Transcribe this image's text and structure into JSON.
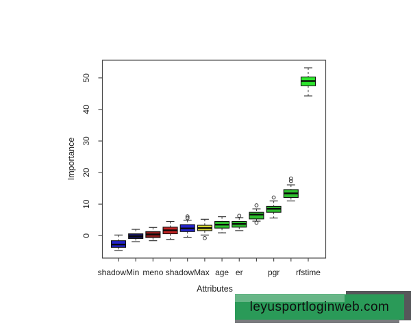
{
  "page": {
    "background_color": "#ffffff"
  },
  "chart_data": {
    "type": "boxplot",
    "title": "",
    "xlabel": "Attributes",
    "ylabel": "Importance",
    "ylim": [
      -7.1,
      55.6
    ],
    "y_ticks": [
      0,
      10,
      20,
      30,
      40,
      50
    ],
    "grid": false,
    "legend": null,
    "axis_color": "#4a4a4a",
    "text_color": "#1e1e1e",
    "whisker_color": "#333333",
    "boxes": [
      {
        "label": "shadowMin",
        "show_label": true,
        "color": "#2323cb",
        "whisker_low": -4.7,
        "q1": -3.7,
        "median": -2.8,
        "q3": -1.6,
        "whisker_high": 0.2,
        "outliers": []
      },
      {
        "label": "",
        "show_label": false,
        "color": "#15155f",
        "whisker_low": -1.9,
        "q1": -0.9,
        "median": -0.2,
        "q3": 0.6,
        "whisker_high": 2.0,
        "outliers": []
      },
      {
        "label": "meno",
        "show_label": true,
        "color": "#8c1b1b",
        "whisker_low": -1.6,
        "q1": -0.6,
        "median": 0.4,
        "q3": 1.3,
        "whisker_high": 2.6,
        "outliers": []
      },
      {
        "label": "",
        "show_label": false,
        "color": "#c32424",
        "whisker_low": -1.2,
        "q1": 0.6,
        "median": 1.7,
        "q3": 2.7,
        "whisker_high": 4.5,
        "outliers": []
      },
      {
        "label": "shadowMax",
        "show_label": true,
        "color": "#2323cb",
        "whisker_low": -0.5,
        "q1": 1.3,
        "median": 2.3,
        "q3": 3.5,
        "whisker_high": 4.9,
        "outliers": [
          5.6,
          6.1
        ]
      },
      {
        "label": "",
        "show_label": false,
        "color": "#d8d832",
        "whisker_low": 0.2,
        "q1": 1.6,
        "median": 2.4,
        "q3": 3.3,
        "whisker_high": 5.2,
        "outliers": [
          -0.8
        ]
      },
      {
        "label": "age",
        "show_label": true,
        "color": "#2fbf2f",
        "whisker_low": 0.9,
        "q1": 2.4,
        "median": 3.5,
        "q3": 4.5,
        "whisker_high": 6.0,
        "outliers": []
      },
      {
        "label": "er",
        "show_label": true,
        "color": "#2fbf2f",
        "whisker_low": 1.6,
        "q1": 2.7,
        "median": 3.7,
        "q3": 4.5,
        "whisker_high": 5.7,
        "outliers": [
          6.3
        ]
      },
      {
        "label": "",
        "show_label": false,
        "color": "#2fbf2f",
        "whisker_low": 4.6,
        "q1": 5.3,
        "median": 6.7,
        "q3": 7.4,
        "whisker_high": 8.5,
        "outliers": [
          4.1,
          9.6
        ]
      },
      {
        "label": "pgr",
        "show_label": true,
        "color": "#2fbf2f",
        "whisker_low": 5.6,
        "q1": 7.4,
        "median": 8.5,
        "q3": 9.3,
        "whisker_high": 11.0,
        "outliers": [
          12.1
        ]
      },
      {
        "label": "",
        "show_label": false,
        "color": "#2fbf2f",
        "whisker_low": 11.0,
        "q1": 12.1,
        "median": 13.4,
        "q3": 14.6,
        "whisker_high": 16.1,
        "outliers": [
          17.3,
          18.1
        ]
      },
      {
        "label": "rfstime",
        "show_label": true,
        "color": "#2ee52e",
        "whisker_low": 44.3,
        "q1": 47.5,
        "median": 49.0,
        "q3": 50.3,
        "whisker_high": 53.2,
        "outliers": []
      }
    ]
  },
  "watermark": {
    "text": "leyusportloginweb.com",
    "banner_color": "#2a9a58",
    "light_stripe_color": "#67b687",
    "dark_stripe_color": "#56575a",
    "bottom_stripe_color": "#7a7b7e",
    "text_color": "#0e0e0e"
  }
}
